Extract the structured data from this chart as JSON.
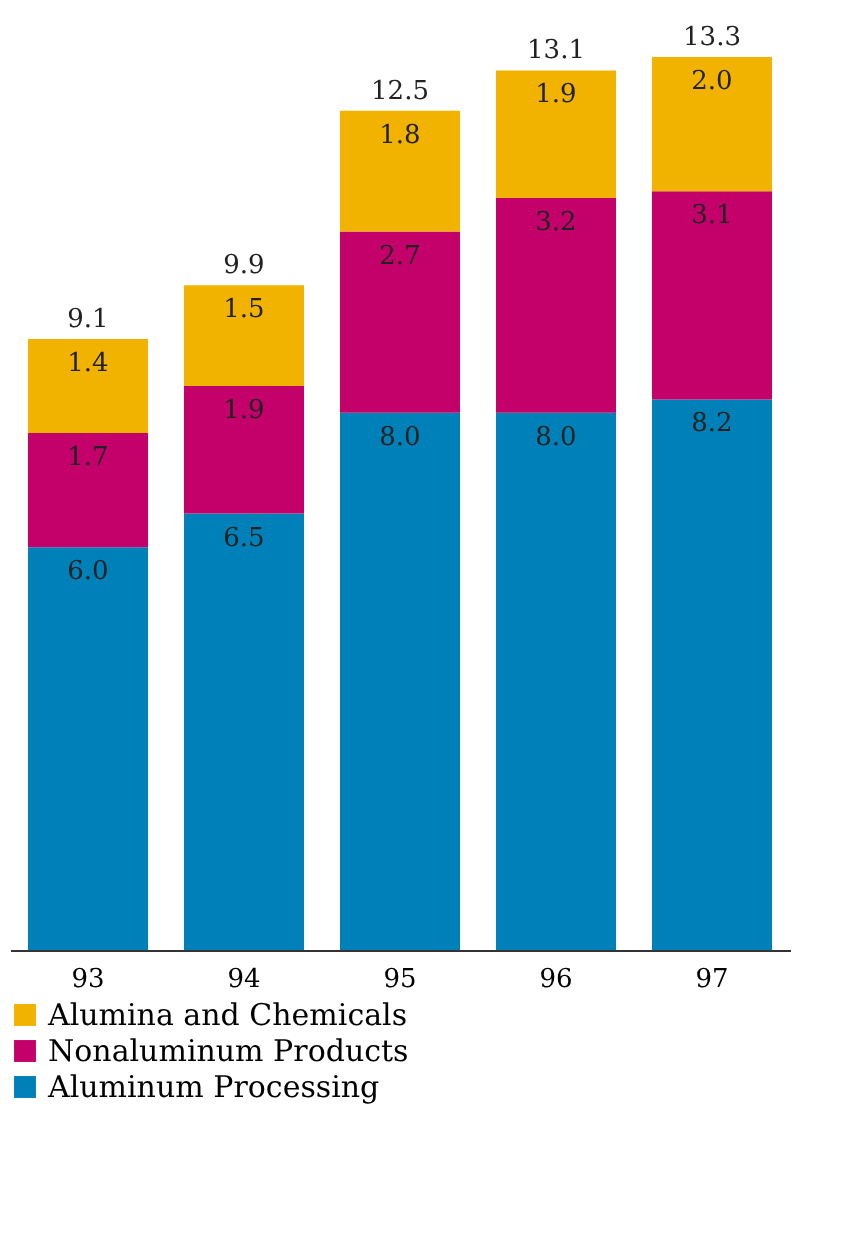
{
  "chart_data": {
    "type": "bar",
    "stacked": true,
    "legend": "bottom",
    "categories": [
      "93",
      "94",
      "95",
      "96",
      "97"
    ],
    "series": [
      {
        "name": "Aluminum Processing",
        "color": "#0080b8",
        "values": [
          6.0,
          6.5,
          8.0,
          8.0,
          8.2
        ],
        "value_labels": [
          "6.0",
          "6.5",
          "8.0",
          "8.0",
          "8.2"
        ]
      },
      {
        "name": "Nonaluminum Products",
        "color": "#c4006a",
        "values": [
          1.7,
          1.9,
          2.7,
          3.2,
          3.1
        ],
        "value_labels": [
          "1.7",
          "1.9",
          "2.7",
          "3.2",
          "3.1"
        ]
      },
      {
        "name": "Alumina and Chemicals",
        "color": "#f2b300",
        "values": [
          1.4,
          1.5,
          1.8,
          1.9,
          2.0
        ],
        "value_labels": [
          "1.4",
          "1.5",
          "1.8",
          "1.9",
          "2.0"
        ]
      }
    ],
    "totals": [
      "9.1",
      "9.9",
      "12.5",
      "13.1",
      "13.3"
    ]
  }
}
